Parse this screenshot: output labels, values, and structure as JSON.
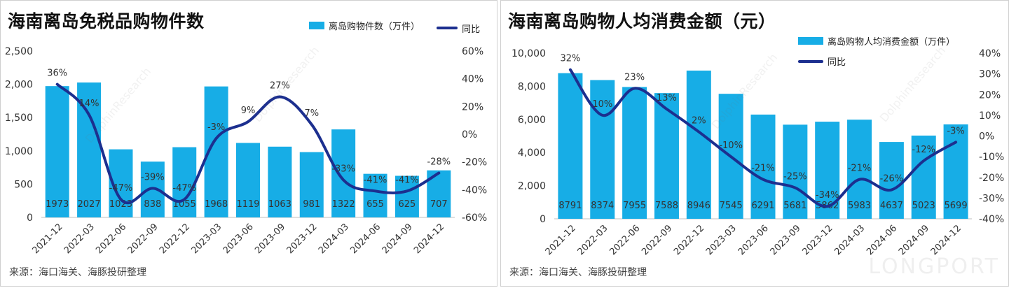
{
  "colors": {
    "bar": "#17ade6",
    "line": "#1c2f8f",
    "grid": "#d9d9d9",
    "text": "#333333"
  },
  "watermark": "DolphinResearch",
  "brand": "LONGPORT",
  "charts": [
    {
      "title": "海南离岛免税品购物件数",
      "legend": {
        "bar": "离岛购物件数（万件）",
        "line": "同比"
      },
      "source": "来源：海口海关、海豚投研整理",
      "chart_data": {
        "type": "bar",
        "categories": [
          "2021-12",
          "2022-03",
          "2022-06",
          "2022-09",
          "2022-12",
          "2023-03",
          "2023-06",
          "2023-09",
          "2023-12",
          "2024-03",
          "2024-06",
          "2024-09",
          "2024-12"
        ],
        "series": [
          {
            "name": "离岛购物件数（万件）",
            "type": "bar",
            "axis": "left",
            "values": [
              1973,
              2027,
              1023,
              838,
              1055,
              1968,
              1119,
              1063,
              981,
              1322,
              655,
              625,
              707
            ]
          },
          {
            "name": "同比",
            "type": "line",
            "axis": "right",
            "values": [
              36,
              14,
              -47,
              -39,
              -47,
              -3,
              9,
              27,
              7,
              -33,
              -41,
              -41,
              -28
            ]
          }
        ],
        "bar_labels": [
          "1973",
          "2027",
          "1023",
          "838",
          "1055",
          "1968",
          "1119",
          "1063",
          "981",
          "1322",
          "655",
          "625",
          "707"
        ],
        "line_labels": [
          "36%",
          "14%",
          "-47%",
          "-39%",
          "-47%",
          "-3%",
          "9%",
          "27%",
          "7%",
          "-33%",
          "-41%",
          "-41%",
          "-28%"
        ],
        "left_axis": {
          "min": 0,
          "max": 2500,
          "ticks": [
            0,
            500,
            1000,
            1500,
            2000,
            2500
          ],
          "tick_labels": [
            "0",
            "500",
            "1,000",
            "1,500",
            "2,000",
            "2,500"
          ]
        },
        "right_axis": {
          "min": -60,
          "max": 60,
          "ticks": [
            -60,
            -40,
            -20,
            0,
            20,
            40,
            60
          ],
          "tick_labels": [
            "-60%",
            "-40%",
            "-20%",
            "0%",
            "20%",
            "40%",
            "60%"
          ]
        },
        "grid": false,
        "legend_position": "top-right"
      }
    },
    {
      "title": "海南离岛购物人均消费金额（元）",
      "legend": {
        "bar": "离岛购物人均消费金额（万件）",
        "line": "同比"
      },
      "source": "来源：海口海关、海豚投研整理",
      "chart_data": {
        "type": "bar",
        "categories": [
          "2021-12",
          "2022-03",
          "2022-06",
          "2022-09",
          "2022-12",
          "2023-03",
          "2023-06",
          "2023-09",
          "2023-12",
          "2024-03",
          "2024-06",
          "2024-09",
          "2024-12"
        ],
        "series": [
          {
            "name": "离岛购物人均消费金额（万件）",
            "type": "bar",
            "axis": "left",
            "values": [
              8791,
              8374,
              7955,
              7588,
              8946,
              7545,
              6291,
              5681,
              5862,
              5983,
              4637,
              5023,
              5699
            ]
          },
          {
            "name": "同比",
            "type": "line",
            "axis": "right",
            "values": [
              32,
              10,
              23,
              13,
              2,
              -10,
              -21,
              -25,
              -34,
              -21,
              -26,
              -12,
              -3
            ]
          }
        ],
        "bar_labels": [
          "8791",
          "8374",
          "7955",
          "7588",
          "8946",
          "7545",
          "6291",
          "5681",
          "5862",
          "5983",
          "4637",
          "5023",
          "5699"
        ],
        "line_labels": [
          "32%",
          "10%",
          "23%",
          "13%",
          "2%",
          "-10%",
          "-21%",
          "-25%",
          "-34%",
          "-21%",
          "-26%",
          "-12%",
          "-3%"
        ],
        "left_axis": {
          "min": 0,
          "max": 10000,
          "ticks": [
            0,
            2000,
            4000,
            6000,
            8000,
            10000
          ],
          "tick_labels": [
            "0",
            "2,000",
            "4,000",
            "6,000",
            "8,000",
            "10,000"
          ]
        },
        "right_axis": {
          "min": -40,
          "max": 40,
          "ticks": [
            -40,
            -30,
            -20,
            -10,
            0,
            10,
            20,
            30,
            40
          ],
          "tick_labels": [
            "-40%",
            "-30%",
            "-20%",
            "-10%",
            "0%",
            "10%",
            "20%",
            "30%",
            "40%"
          ]
        },
        "grid": false,
        "legend_position": "top-right"
      }
    }
  ]
}
